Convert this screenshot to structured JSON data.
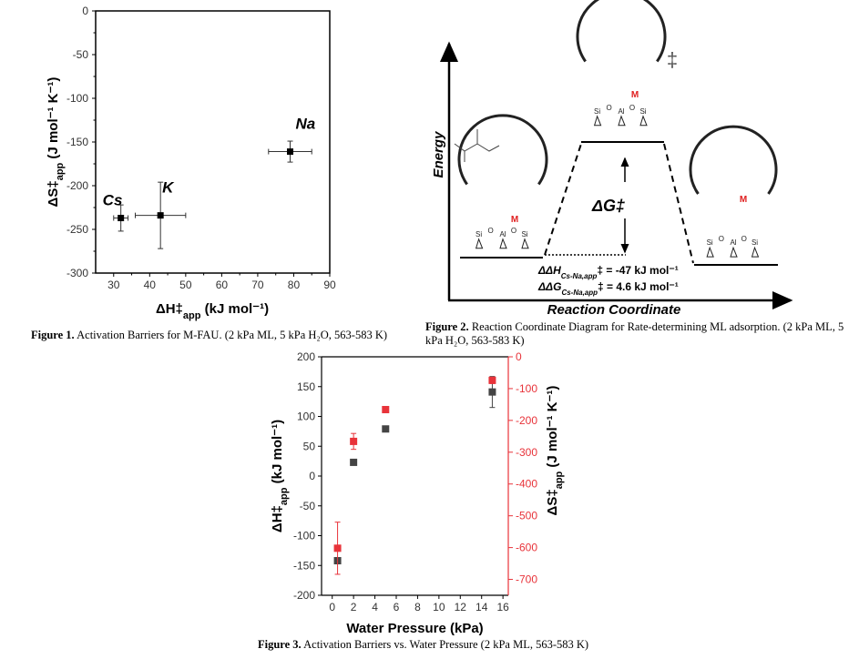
{
  "figure1": {
    "caption_label": "Figure 1.",
    "caption_text": "Activation Barriers for M-FAU. (2 kPa ML, 5 kPa H₂O, 563-583 K)"
  },
  "figure2": {
    "caption_label": "Figure 2.",
    "caption_text": "Reaction Coordinate Diagram for Rate-determining ML adsorption. (2 kPa ML, 5 kPa H₂O, 563-583 K)",
    "y_axis_label": "Energy",
    "x_axis_label": "Reaction Coordinate",
    "delta_g_label": "ΔG‡",
    "transition_state_symbol": "‡",
    "ddh_label": "ΔΔH",
    "ddh_subscript": "Cs-Na,app",
    "ddh_value": "‡ = -47 kJ mol⁻¹",
    "ddg_label": "ΔΔG",
    "ddg_subscript": "Cs-Na,app",
    "ddg_value": "‡ = 4.6 kJ mol⁻¹",
    "metal_label": "M",
    "metal_color": "#e02020",
    "framework_labels": [
      "Si",
      "O",
      "Al",
      "O",
      "Si"
    ]
  },
  "figure3": {
    "caption_label": "Figure 3.",
    "caption_text": "Activation Barriers vs. Water Pressure (2 kPa ML, 563-583 K)"
  },
  "chart_data": [
    {
      "type": "scatter",
      "xlabel": "ΔH‡app (kJ mol⁻¹)",
      "ylabel": "ΔS‡app (J mol⁻¹ K⁻¹)",
      "xlim": [
        25,
        90
      ],
      "ylim": [
        -300,
        0
      ],
      "xticks": [
        30,
        40,
        50,
        60,
        70,
        80,
        90
      ],
      "yticks": [
        0,
        -50,
        -100,
        -150,
        -200,
        -250,
        -300
      ],
      "grid": false,
      "points": [
        {
          "label": "Cs",
          "x": 32,
          "y": -237,
          "xerr": 2,
          "yerr": 15
        },
        {
          "label": "K",
          "x": 43,
          "y": -234,
          "xerr": 7,
          "yerr": 38
        },
        {
          "label": "Na",
          "x": 79,
          "y": -161,
          "xerr": 6,
          "yerr": 12
        }
      ]
    },
    {
      "type": "scatter",
      "xlabel": "Water Pressure (kPa)",
      "ylabel": "ΔH‡app (kJ mol⁻¹)",
      "ylabel_right": "ΔS‡app (J mol⁻¹ K⁻¹)",
      "xlim": [
        -1,
        16.5
      ],
      "ylim": [
        -200,
        200
      ],
      "ylim_right": [
        -750,
        0
      ],
      "xticks": [
        0,
        2,
        4,
        6,
        8,
        10,
        12,
        14,
        16
      ],
      "yticks": [
        200,
        150,
        100,
        50,
        0,
        -50,
        -100,
        -150,
        -200
      ],
      "yticks_right": [
        0,
        -100,
        -200,
        -300,
        -400,
        -500,
        -600,
        -700
      ],
      "grid": false,
      "series": [
        {
          "axis": "left",
          "color": "#444444",
          "x": [
            0.5,
            2,
            5,
            15
          ],
          "y": [
            -142,
            23,
            79,
            141
          ],
          "yerr": [
            4,
            3,
            4,
            26
          ]
        },
        {
          "axis": "right",
          "color": "#e8333a",
          "x": [
            0.5,
            2,
            5,
            15
          ],
          "y": [
            -602,
            -266,
            -166,
            -74
          ],
          "yerr": [
            82,
            25,
            8,
            10
          ]
        }
      ]
    }
  ]
}
